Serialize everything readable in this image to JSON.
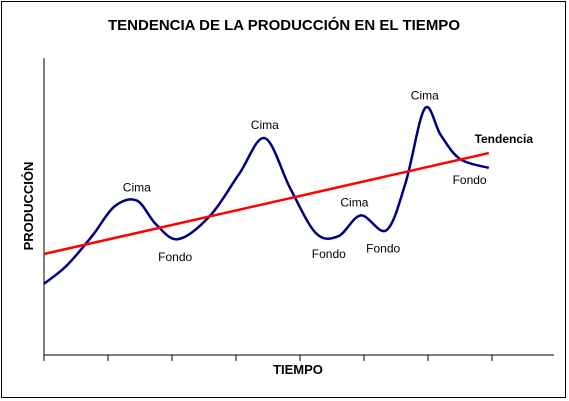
{
  "chart_data": {
    "type": "line",
    "title": "TENDENCIA DE LA PRODUCCIÓN EN EL TIEMPO",
    "xlabel": "TIEMPO",
    "ylabel": "PRODUCCIÓN",
    "xlim": [
      0,
      7
    ],
    "ylim": [
      0,
      10
    ],
    "x_ticks": [
      0,
      1,
      2,
      3,
      4,
      5,
      6,
      7
    ],
    "x_tick_labels": [],
    "y_tick_labels": [],
    "grid": false,
    "series": [
      {
        "role": "production",
        "color": "#000080",
        "points": [
          [
            0.0,
            2.4
          ],
          [
            0.35,
            3.0
          ],
          [
            0.75,
            4.0
          ],
          [
            1.1,
            5.0
          ],
          [
            1.45,
            5.2
          ],
          [
            1.75,
            4.4
          ],
          [
            2.1,
            3.9
          ],
          [
            2.6,
            4.7
          ],
          [
            3.05,
            6.1
          ],
          [
            3.45,
            7.3
          ],
          [
            3.85,
            5.6
          ],
          [
            4.25,
            4.1
          ],
          [
            4.6,
            4.0
          ],
          [
            4.95,
            4.7
          ],
          [
            5.35,
            4.2
          ],
          [
            5.65,
            5.8
          ],
          [
            5.95,
            8.3
          ],
          [
            6.2,
            7.4
          ],
          [
            6.5,
            6.6
          ],
          [
            6.95,
            6.3
          ]
        ]
      },
      {
        "role": "trend",
        "color": "#ff0000",
        "points": [
          [
            0.0,
            3.4
          ],
          [
            6.95,
            6.8
          ]
        ]
      }
    ],
    "annotations": [
      {
        "text": "Cima",
        "x": 1.45,
        "y": 5.2,
        "position": "above"
      },
      {
        "text": "Fondo",
        "x": 2.05,
        "y": 3.9,
        "position": "below"
      },
      {
        "text": "Cima",
        "x": 3.45,
        "y": 7.3,
        "position": "above"
      },
      {
        "text": "Fondo",
        "x": 4.45,
        "y": 4.0,
        "position": "below"
      },
      {
        "text": "Cima",
        "x": 4.85,
        "y": 4.7,
        "position": "above"
      },
      {
        "text": "Fondo",
        "x": 5.3,
        "y": 4.2,
        "position": "below"
      },
      {
        "text": "Cima",
        "x": 5.95,
        "y": 8.3,
        "position": "above"
      },
      {
        "text": "Fondo",
        "x": 6.65,
        "y": 6.5,
        "position": "below"
      }
    ],
    "trend_label": "Tendencia"
  }
}
